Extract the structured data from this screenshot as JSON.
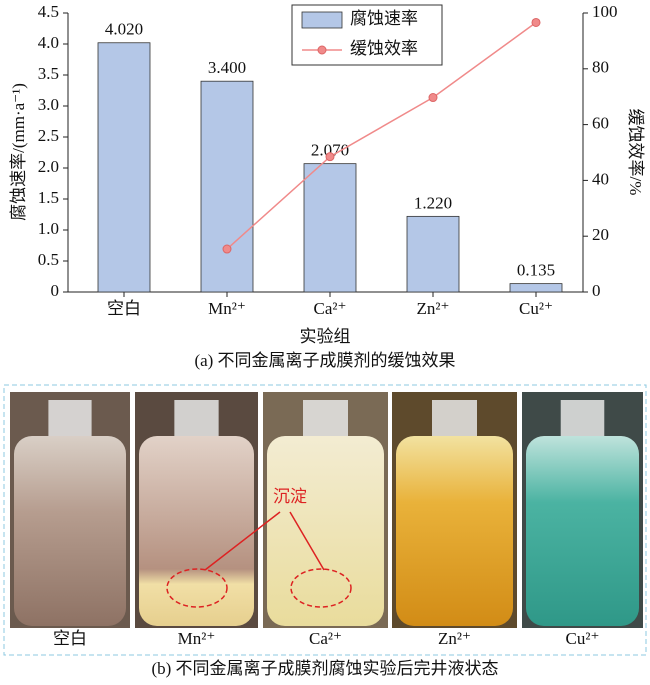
{
  "chart_data": {
    "type": "bar",
    "categories": [
      "空白",
      "Mn²⁺",
      "Ca²⁺",
      "Zn²⁺",
      "Cu²⁺"
    ],
    "series": [
      {
        "name": "腐蚀速率",
        "color": "#b4c7e7",
        "values": [
          4.02,
          3.4,
          2.07,
          1.22,
          0.135
        ],
        "value_labels": [
          "4.020",
          "3.400",
          "2.070",
          "1.220",
          "0.135"
        ]
      },
      {
        "name": "缓蚀效率",
        "color": "#f08a8a",
        "type": "line",
        "axis": "y2",
        "values": [
          null,
          15.4,
          48.5,
          69.7,
          96.6
        ]
      }
    ],
    "ylabel": "腐蚀速率/(mm·a⁻¹)",
    "y2label": "缓蚀效率/%",
    "xlabel": "实验组",
    "ylim": [
      0,
      4.5
    ],
    "yticks": [
      0,
      0.5,
      {
        "value": 1,
        "label": "1.0"
      },
      1.5,
      {
        "value": 2,
        "label": "2.0"
      },
      2.5,
      {
        "value": 3,
        "label": "3.0"
      },
      3.5,
      {
        "value": 4,
        "label": "4.0"
      },
      4.5
    ],
    "y2lim": [
      0,
      100
    ],
    "y2ticks": [
      0,
      20,
      40,
      60,
      80,
      100
    ],
    "legend": "top",
    "caption": "(a) 不同金属离子成膜剂的缓蚀效果"
  },
  "photos": {
    "labels": [
      "空白",
      "Mn²⁺",
      "Ca²⁺",
      "Zn²⁺",
      "Cu²⁺"
    ],
    "annotation": "沉淀",
    "caption": "(b) 不同金属离子成膜剂腐蚀实验后完井液状态"
  }
}
